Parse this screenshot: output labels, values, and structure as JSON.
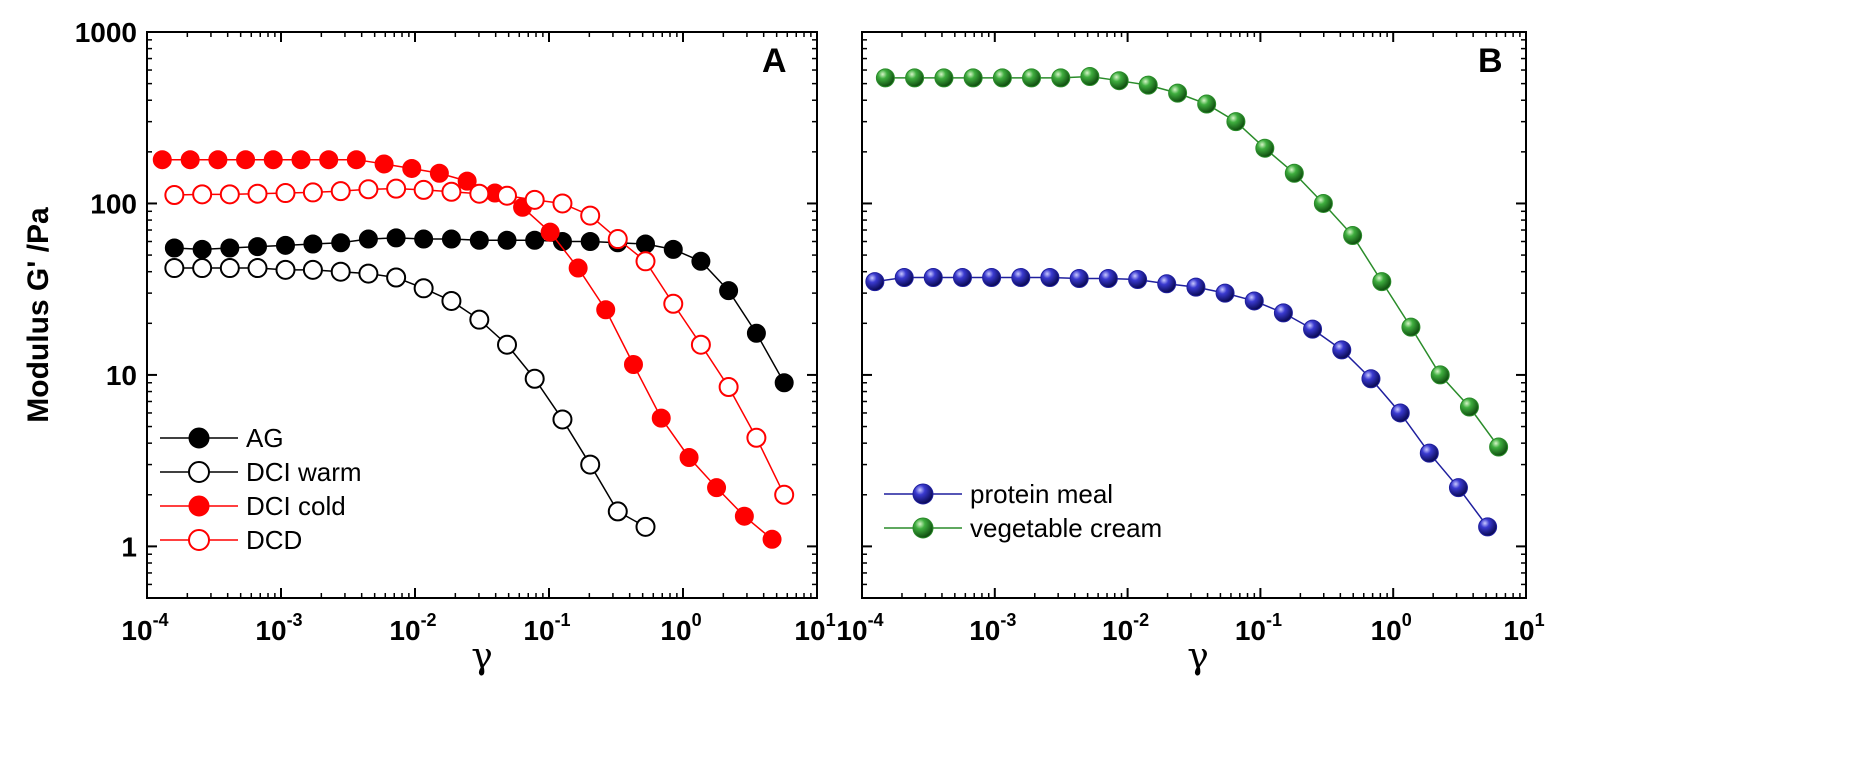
{
  "chart_data": [
    {
      "type": "line",
      "panel": "A",
      "xscale": "log",
      "yscale": "log",
      "xlabel": "γ",
      "ylabel": "Modulus G' /Pa",
      "xlim": [
        0.0001,
        10
      ],
      "ylim": [
        0.5,
        1000
      ],
      "x_ticks": [
        {
          "base": "10",
          "exp": "-4"
        },
        {
          "base": "10",
          "exp": "-3"
        },
        {
          "base": "10",
          "exp": "-2"
        },
        {
          "base": "10",
          "exp": "-1"
        },
        {
          "base": "10",
          "exp": "0"
        },
        {
          "base": "10",
          "exp": "1"
        }
      ],
      "y_ticks": [
        "1",
        "10",
        "100",
        "1000"
      ],
      "legend_position": "bottom-left",
      "series": [
        {
          "name": "AG",
          "color": "#000000",
          "marker": "filled-circle",
          "x": [
            0.00016,
            0.000258,
            0.000415,
            0.000668,
            0.00108,
            0.00173,
            0.00279,
            0.00449,
            0.00723,
            0.0116,
            0.0187,
            0.0302,
            0.0486,
            0.0782,
            0.126,
            0.203,
            0.326,
            0.525,
            0.846,
            1.36,
            2.19,
            3.53,
            5.69
          ],
          "y": [
            55,
            54,
            55,
            56,
            57,
            58,
            59,
            62,
            63,
            62,
            62,
            61,
            61,
            61,
            60,
            60,
            59,
            58,
            54,
            46,
            31,
            17.5,
            9
          ]
        },
        {
          "name": "DCI warm",
          "color": "#000000",
          "marker": "open-circle",
          "x": [
            0.00016,
            0.000258,
            0.000415,
            0.000668,
            0.00108,
            0.00173,
            0.00279,
            0.00449,
            0.00723,
            0.0116,
            0.0187,
            0.0302,
            0.0486,
            0.0782,
            0.126,
            0.203,
            0.326,
            0.525
          ],
          "y": [
            42,
            42,
            42,
            42,
            41,
            41,
            40,
            39,
            37,
            32,
            27,
            21,
            15,
            9.5,
            5.5,
            3,
            1.6,
            1.3
          ]
        },
        {
          "name": "DCI cold",
          "color": "#ff0000",
          "marker": "filled-circle",
          "x": [
            0.00013,
            0.00021,
            0.000338,
            0.000544,
            0.000875,
            0.00141,
            0.00227,
            0.00365,
            0.00588,
            0.00946,
            0.0152,
            0.0245,
            0.0395,
            0.0635,
            0.102,
            0.165,
            0.265,
            0.427,
            0.688,
            1.11,
            1.78,
            2.87,
            4.62
          ],
          "y": [
            180,
            180,
            180,
            180,
            180,
            180,
            180,
            180,
            170,
            160,
            150,
            135,
            115,
            95,
            68,
            42,
            24,
            11.5,
            5.6,
            3.3,
            2.2,
            1.5,
            1.1
          ]
        },
        {
          "name": "DCD",
          "color": "#ff0000",
          "marker": "open-circle",
          "x": [
            0.00016,
            0.000258,
            0.000415,
            0.000668,
            0.00108,
            0.00173,
            0.00279,
            0.00449,
            0.00723,
            0.0116,
            0.0187,
            0.0302,
            0.0486,
            0.0782,
            0.126,
            0.203,
            0.326,
            0.525,
            0.846,
            1.36,
            2.19,
            3.53,
            5.69
          ],
          "y": [
            112,
            113,
            113,
            114,
            115,
            116,
            118,
            121,
            122,
            120,
            117,
            114,
            111,
            105,
            100,
            85,
            62,
            46,
            26,
            15,
            8.5,
            4.3,
            2
          ]
        }
      ]
    },
    {
      "type": "line",
      "panel": "B",
      "xscale": "log",
      "yscale": "log",
      "xlabel": "γ",
      "xlim": [
        0.0001,
        10
      ],
      "ylim": [
        0.5,
        1000
      ],
      "x_ticks": [
        {
          "base": "10",
          "exp": "-4"
        },
        {
          "base": "10",
          "exp": "-3"
        },
        {
          "base": "10",
          "exp": "-2"
        },
        {
          "base": "10",
          "exp": "-1"
        },
        {
          "base": "10",
          "exp": "0"
        },
        {
          "base": "10",
          "exp": "1"
        }
      ],
      "legend_position": "bottom-left",
      "series": [
        {
          "name": "protein meal",
          "color": "#1f1f9e",
          "marker": "sphere",
          "x": [
            0.000125,
            0.000208,
            0.000344,
            0.000571,
            0.000946,
            0.00157,
            0.0026,
            0.00432,
            0.00716,
            0.0119,
            0.0197,
            0.0327,
            0.0542,
            0.0899,
            0.149,
            0.247,
            0.41,
            0.68,
            1.13,
            1.87,
            3.1,
            5.14
          ],
          "y": [
            35,
            37,
            37,
            37,
            37,
            37,
            37,
            36.5,
            36.5,
            36,
            34,
            32.5,
            30,
            27,
            23,
            18.5,
            14,
            9.5,
            6,
            3.5,
            2.2,
            1.3
          ]
        },
        {
          "name": "vegetable cream",
          "color": "#2a8c2a",
          "marker": "sphere",
          "x": [
            0.00015,
            0.000249,
            0.000414,
            0.000687,
            0.00114,
            0.00189,
            0.00314,
            0.0052,
            0.00864,
            0.0143,
            0.0238,
            0.0394,
            0.0654,
            0.108,
            0.18,
            0.298,
            0.495,
            0.821,
            1.36,
            2.26,
            3.75,
            6.22
          ],
          "y": [
            540,
            540,
            540,
            540,
            540,
            540,
            540,
            550,
            520,
            490,
            440,
            380,
            300,
            210,
            150,
            100,
            65,
            35,
            19,
            10,
            6.5,
            3.8
          ]
        }
      ]
    }
  ]
}
